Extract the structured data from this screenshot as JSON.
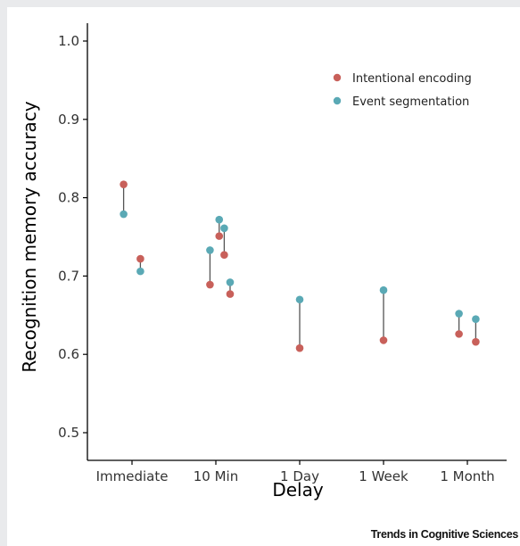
{
  "chart_data": {
    "type": "scatter",
    "xlabel": "Delay",
    "ylabel": "Recognition memory accuracy",
    "ylim": [
      0.5,
      1.0
    ],
    "yticks": [
      "0.5",
      "0.6",
      "0.7",
      "0.8",
      "0.9",
      "1.0"
    ],
    "categories": [
      "Immediate",
      "10 Min",
      "1 Day",
      "1 Week",
      "1 Month"
    ],
    "legend_position": "top-right",
    "grid": false,
    "series": [
      {
        "name": "Intentional encoding",
        "color": "#c8605a"
      },
      {
        "name": "Event segmentation",
        "color": "#5aa9b5"
      }
    ],
    "pairs": [
      {
        "category": "Immediate",
        "offset": -0.1,
        "intentional": 0.817,
        "segmentation": 0.779
      },
      {
        "category": "Immediate",
        "offset": 0.1,
        "intentional": 0.722,
        "segmentation": 0.706
      },
      {
        "category": "10 Min",
        "offset": -0.07,
        "intentional": 0.689,
        "segmentation": 0.733
      },
      {
        "category": "10 Min",
        "offset": 0.04,
        "intentional": 0.751,
        "segmentation": 0.772
      },
      {
        "category": "10 Min",
        "offset": 0.1,
        "intentional": 0.727,
        "segmentation": 0.761
      },
      {
        "category": "10 Min",
        "offset": 0.17,
        "intentional": 0.677,
        "segmentation": 0.692
      },
      {
        "category": "1 Day",
        "offset": 0.0,
        "intentional": 0.608,
        "segmentation": 0.67
      },
      {
        "category": "1 Week",
        "offset": 0.0,
        "intentional": 0.618,
        "segmentation": 0.682
      },
      {
        "category": "1 Month",
        "offset": -0.1,
        "intentional": 0.626,
        "segmentation": 0.652
      },
      {
        "category": "1 Month",
        "offset": 0.1,
        "intentional": 0.616,
        "segmentation": 0.645
      }
    ]
  },
  "source": "Trends in Cognitive Sciences"
}
